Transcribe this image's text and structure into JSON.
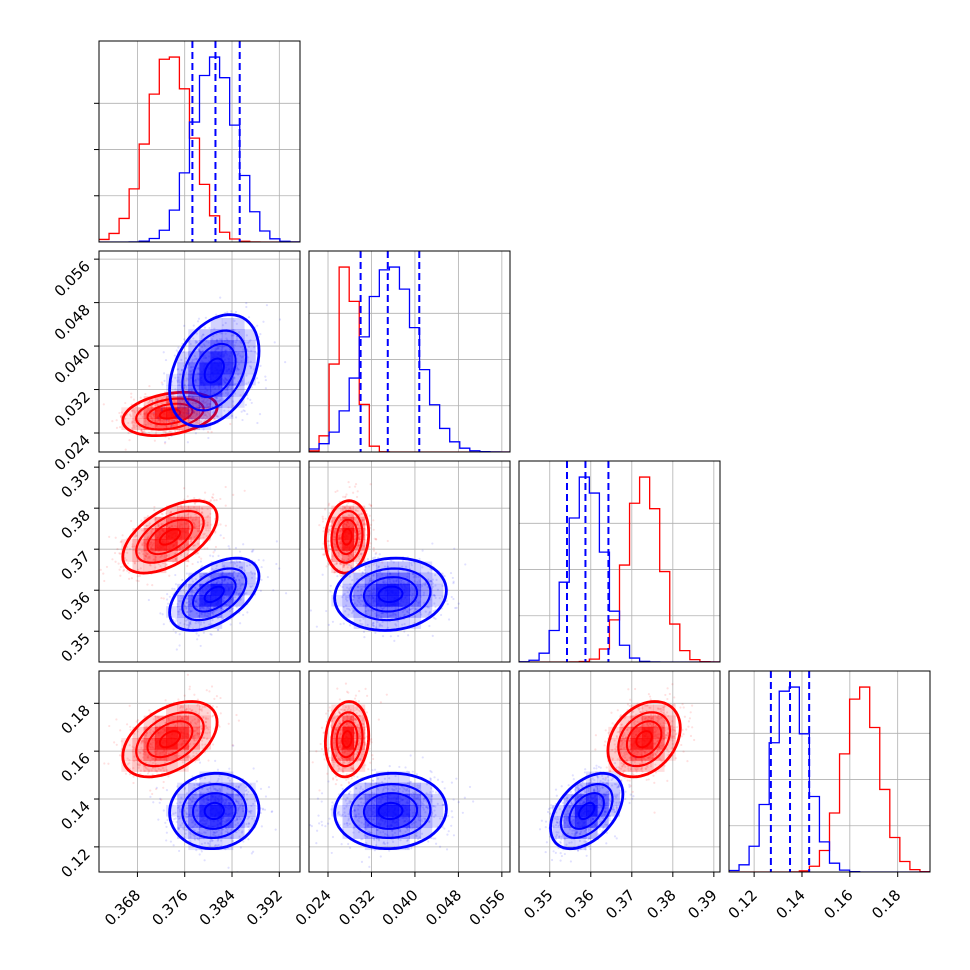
{
  "chart_data": {
    "type": "corner",
    "title": "",
    "colors": {
      "set_a": "#ff0000",
      "set_b": "#0000ff",
      "grid": "#b0b0b0"
    },
    "grid": true,
    "parameters": [
      {
        "range": [
          0.3615,
          0.3955
        ],
        "ticks": [
          0.368,
          0.376,
          0.384,
          0.392
        ],
        "tick_labels": [
          "0.368",
          "0.376",
          "0.384",
          "0.392"
        ]
      },
      {
        "range": [
          0.0205,
          0.0575
        ],
        "ticks": [
          0.024,
          0.032,
          0.04,
          0.048,
          0.056
        ],
        "tick_labels": [
          "0.024",
          "0.032",
          "0.040",
          "0.048",
          "0.056"
        ]
      },
      {
        "range": [
          0.3425,
          0.3915
        ],
        "ticks": [
          0.35,
          0.36,
          0.37,
          0.38,
          0.39
        ],
        "tick_labels": [
          "0.35",
          "0.36",
          "0.37",
          "0.38",
          "0.39"
        ]
      },
      {
        "range": [
          0.1095,
          0.1935
        ],
        "ticks": [
          0.12,
          0.14,
          0.16,
          0.18
        ],
        "tick_labels": [
          "0.12",
          "0.14",
          "0.16",
          "0.18"
        ]
      }
    ],
    "series": [
      {
        "color": "#ff0000",
        "mean": [
          0.3735,
          0.0275,
          0.373,
          0.165
        ],
        "sd": [
          0.0038,
          0.0019,
          0.0042,
          0.0075
        ],
        "corr": [
          [
            1,
            0.3,
            0.55,
            0.45
          ],
          [
            0.3,
            1,
            0.1,
            0.1
          ],
          [
            0.55,
            0.1,
            1,
            0.3
          ],
          [
            0.45,
            0.1,
            0.3,
            1
          ]
        ]
      },
      {
        "color": "#0000ff",
        "mean": [
          0.381,
          0.0355,
          0.359,
          0.135
        ],
        "sd": [
          0.0036,
          0.0049,
          0.0042,
          0.0075
        ],
        "corr": [
          [
            1,
            0.35,
            0.5,
            0.05
          ],
          [
            0.35,
            1,
            0.1,
            0.05
          ],
          [
            0.5,
            0.1,
            1,
            0.45
          ],
          [
            0.05,
            0.05,
            0.45,
            1
          ]
        ]
      }
    ],
    "quantile_lines": [
      {
        "parameter": 0,
        "values": [
          0.3773,
          0.3812,
          0.3853
        ]
      },
      {
        "parameter": 1,
        "values": [
          0.03,
          0.035,
          0.0408
        ]
      },
      {
        "parameter": 2,
        "values": [
          0.3542,
          0.3587,
          0.3643
        ]
      },
      {
        "parameter": 3,
        "values": [
          0.127,
          0.135,
          0.143
        ]
      }
    ]
  }
}
